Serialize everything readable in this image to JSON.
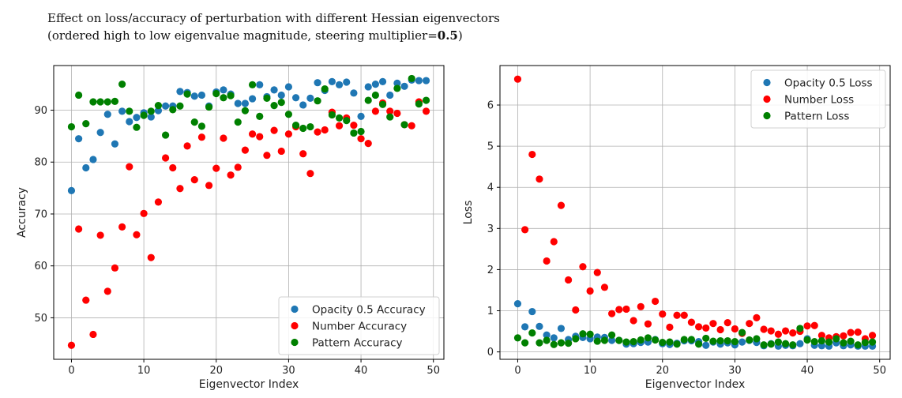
{
  "title": {
    "line1": "Effect on loss/accuracy of perturbation with different Hessian eigenvectors",
    "line2_prefix": "(ordered high to low eigenvalue magnitude, steering multiplier=",
    "line2_value": "0.5",
    "line2_suffix": ")"
  },
  "colors": {
    "blue": "#1f77b4",
    "red": "#ff0000",
    "green": "#008000",
    "grid": "#b0b0b0"
  },
  "chart_data": [
    {
      "type": "scatter",
      "xlabel": "Eigenvector Index",
      "ylabel": "Accuracy",
      "xlim": [
        -2.45,
        51.45
      ],
      "ylim": [
        42.0,
        98.6
      ],
      "xticks": [
        0,
        10,
        20,
        30,
        40,
        50
      ],
      "yticks": [
        50,
        60,
        70,
        80,
        90
      ],
      "grid": true,
      "legend_position": "lower-right",
      "x": [
        0,
        1,
        2,
        3,
        4,
        5,
        6,
        7,
        8,
        9,
        10,
        11,
        12,
        13,
        14,
        15,
        16,
        17,
        18,
        19,
        20,
        21,
        22,
        23,
        24,
        25,
        26,
        27,
        28,
        29,
        30,
        31,
        32,
        33,
        34,
        35,
        36,
        37,
        38,
        39,
        40,
        41,
        42,
        43,
        44,
        45,
        46,
        47,
        48,
        49
      ],
      "series": [
        {
          "name": "Opacity 0.5 Accuracy",
          "color": "blue",
          "values": [
            74.5,
            84.5,
            78.9,
            80.5,
            85.7,
            89.2,
            83.5,
            89.8,
            87.8,
            88.6,
            89.5,
            88.7,
            89.9,
            90.8,
            90.8,
            93.6,
            93.4,
            92.7,
            92.9,
            90.8,
            93.5,
            93.9,
            93.1,
            91.3,
            91.3,
            92.2,
            94.9,
            92.6,
            93.9,
            92.9,
            94.5,
            92.4,
            91.0,
            92.3,
            95.3,
            93.8,
            95.5,
            94.9,
            95.4,
            93.3,
            88.8,
            94.5,
            95.0,
            95.5,
            92.9,
            95.2,
            94.6,
            95.8,
            95.7,
            95.7
          ]
        },
        {
          "name": "Number Accuracy",
          "color": "red",
          "values": [
            44.7,
            67.1,
            53.4,
            46.8,
            65.9,
            55.1,
            59.6,
            67.5,
            79.1,
            66.0,
            70.1,
            61.6,
            72.3,
            80.8,
            78.9,
            74.9,
            83.1,
            76.6,
            84.8,
            75.5,
            78.8,
            84.6,
            77.5,
            79.0,
            82.3,
            85.4,
            84.9,
            81.3,
            86.1,
            82.1,
            85.4,
            86.8,
            81.6,
            77.8,
            85.8,
            86.2,
            89.6,
            87.0,
            88.5,
            87.1,
            84.5,
            83.6,
            89.8,
            91.4,
            89.8,
            89.4,
            87.2,
            87.0,
            91.6,
            89.8
          ]
        },
        {
          "name": "Pattern Accuracy",
          "color": "green",
          "values": [
            86.8,
            92.9,
            87.4,
            91.6,
            91.6,
            91.6,
            91.7,
            95.0,
            89.8,
            86.7,
            89.0,
            89.8,
            90.9,
            85.2,
            90.1,
            90.8,
            93.1,
            87.7,
            86.9,
            90.6,
            93.2,
            92.4,
            92.8,
            87.7,
            89.9,
            94.9,
            88.8,
            92.3,
            90.9,
            91.5,
            89.2,
            87.1,
            86.5,
            86.8,
            91.8,
            94.1,
            89.1,
            88.5,
            88.0,
            85.6,
            85.9,
            91.9,
            92.9,
            91.1,
            88.7,
            94.2,
            87.2,
            96.1,
            91.2,
            91.9
          ]
        }
      ]
    },
    {
      "type": "scatter",
      "xlabel": "Eigenvector Index",
      "ylabel": "Loss",
      "xlim": [
        -2.45,
        51.45
      ],
      "ylim": [
        -0.18,
        6.96
      ],
      "xticks": [
        0,
        10,
        20,
        30,
        40,
        50
      ],
      "yticks": [
        0,
        1,
        2,
        3,
        4,
        5,
        6
      ],
      "grid": true,
      "legend_position": "upper-right",
      "x": [
        0,
        1,
        2,
        3,
        4,
        5,
        6,
        7,
        8,
        9,
        10,
        11,
        12,
        13,
        14,
        15,
        16,
        17,
        18,
        19,
        20,
        21,
        22,
        23,
        24,
        25,
        26,
        27,
        28,
        29,
        30,
        31,
        32,
        33,
        34,
        35,
        36,
        37,
        38,
        39,
        40,
        41,
        42,
        43,
        44,
        45,
        46,
        47,
        48,
        49
      ],
      "series": [
        {
          "name": "Opacity 0.5 Loss",
          "color": "blue",
          "values": [
            1.17,
            0.61,
            0.98,
            0.62,
            0.41,
            0.34,
            0.57,
            0.3,
            0.38,
            0.35,
            0.32,
            0.36,
            0.35,
            0.28,
            0.28,
            0.19,
            0.2,
            0.23,
            0.24,
            0.3,
            0.2,
            0.18,
            0.21,
            0.27,
            0.27,
            0.25,
            0.16,
            0.24,
            0.19,
            0.22,
            0.17,
            0.24,
            0.28,
            0.23,
            0.15,
            0.2,
            0.14,
            0.16,
            0.15,
            0.2,
            0.32,
            0.16,
            0.15,
            0.14,
            0.22,
            0.15,
            0.17,
            0.14,
            0.14,
            0.14
          ]
        },
        {
          "name": "Number Loss",
          "color": "red",
          "values": [
            6.63,
            2.97,
            4.8,
            4.2,
            2.21,
            2.68,
            3.56,
            1.75,
            1.02,
            2.07,
            1.48,
            1.93,
            1.57,
            0.93,
            1.03,
            1.04,
            0.76,
            1.1,
            0.68,
            1.23,
            0.92,
            0.6,
            0.89,
            0.89,
            0.72,
            0.61,
            0.58,
            0.69,
            0.54,
            0.71,
            0.56,
            0.45,
            0.69,
            0.83,
            0.55,
            0.51,
            0.43,
            0.51,
            0.46,
            0.5,
            0.63,
            0.64,
            0.4,
            0.34,
            0.37,
            0.39,
            0.47,
            0.48,
            0.32,
            0.4
          ]
        },
        {
          "name": "Pattern Loss",
          "color": "green",
          "values": [
            0.34,
            0.22,
            0.46,
            0.22,
            0.28,
            0.18,
            0.22,
            0.21,
            0.32,
            0.44,
            0.43,
            0.26,
            0.28,
            0.41,
            0.28,
            0.24,
            0.25,
            0.29,
            0.34,
            0.29,
            0.23,
            0.24,
            0.19,
            0.3,
            0.3,
            0.19,
            0.33,
            0.26,
            0.27,
            0.27,
            0.25,
            0.47,
            0.29,
            0.32,
            0.17,
            0.19,
            0.24,
            0.2,
            0.17,
            0.57,
            0.29,
            0.25,
            0.27,
            0.24,
            0.32,
            0.22,
            0.26,
            0.17,
            0.23,
            0.24
          ]
        }
      ]
    }
  ]
}
